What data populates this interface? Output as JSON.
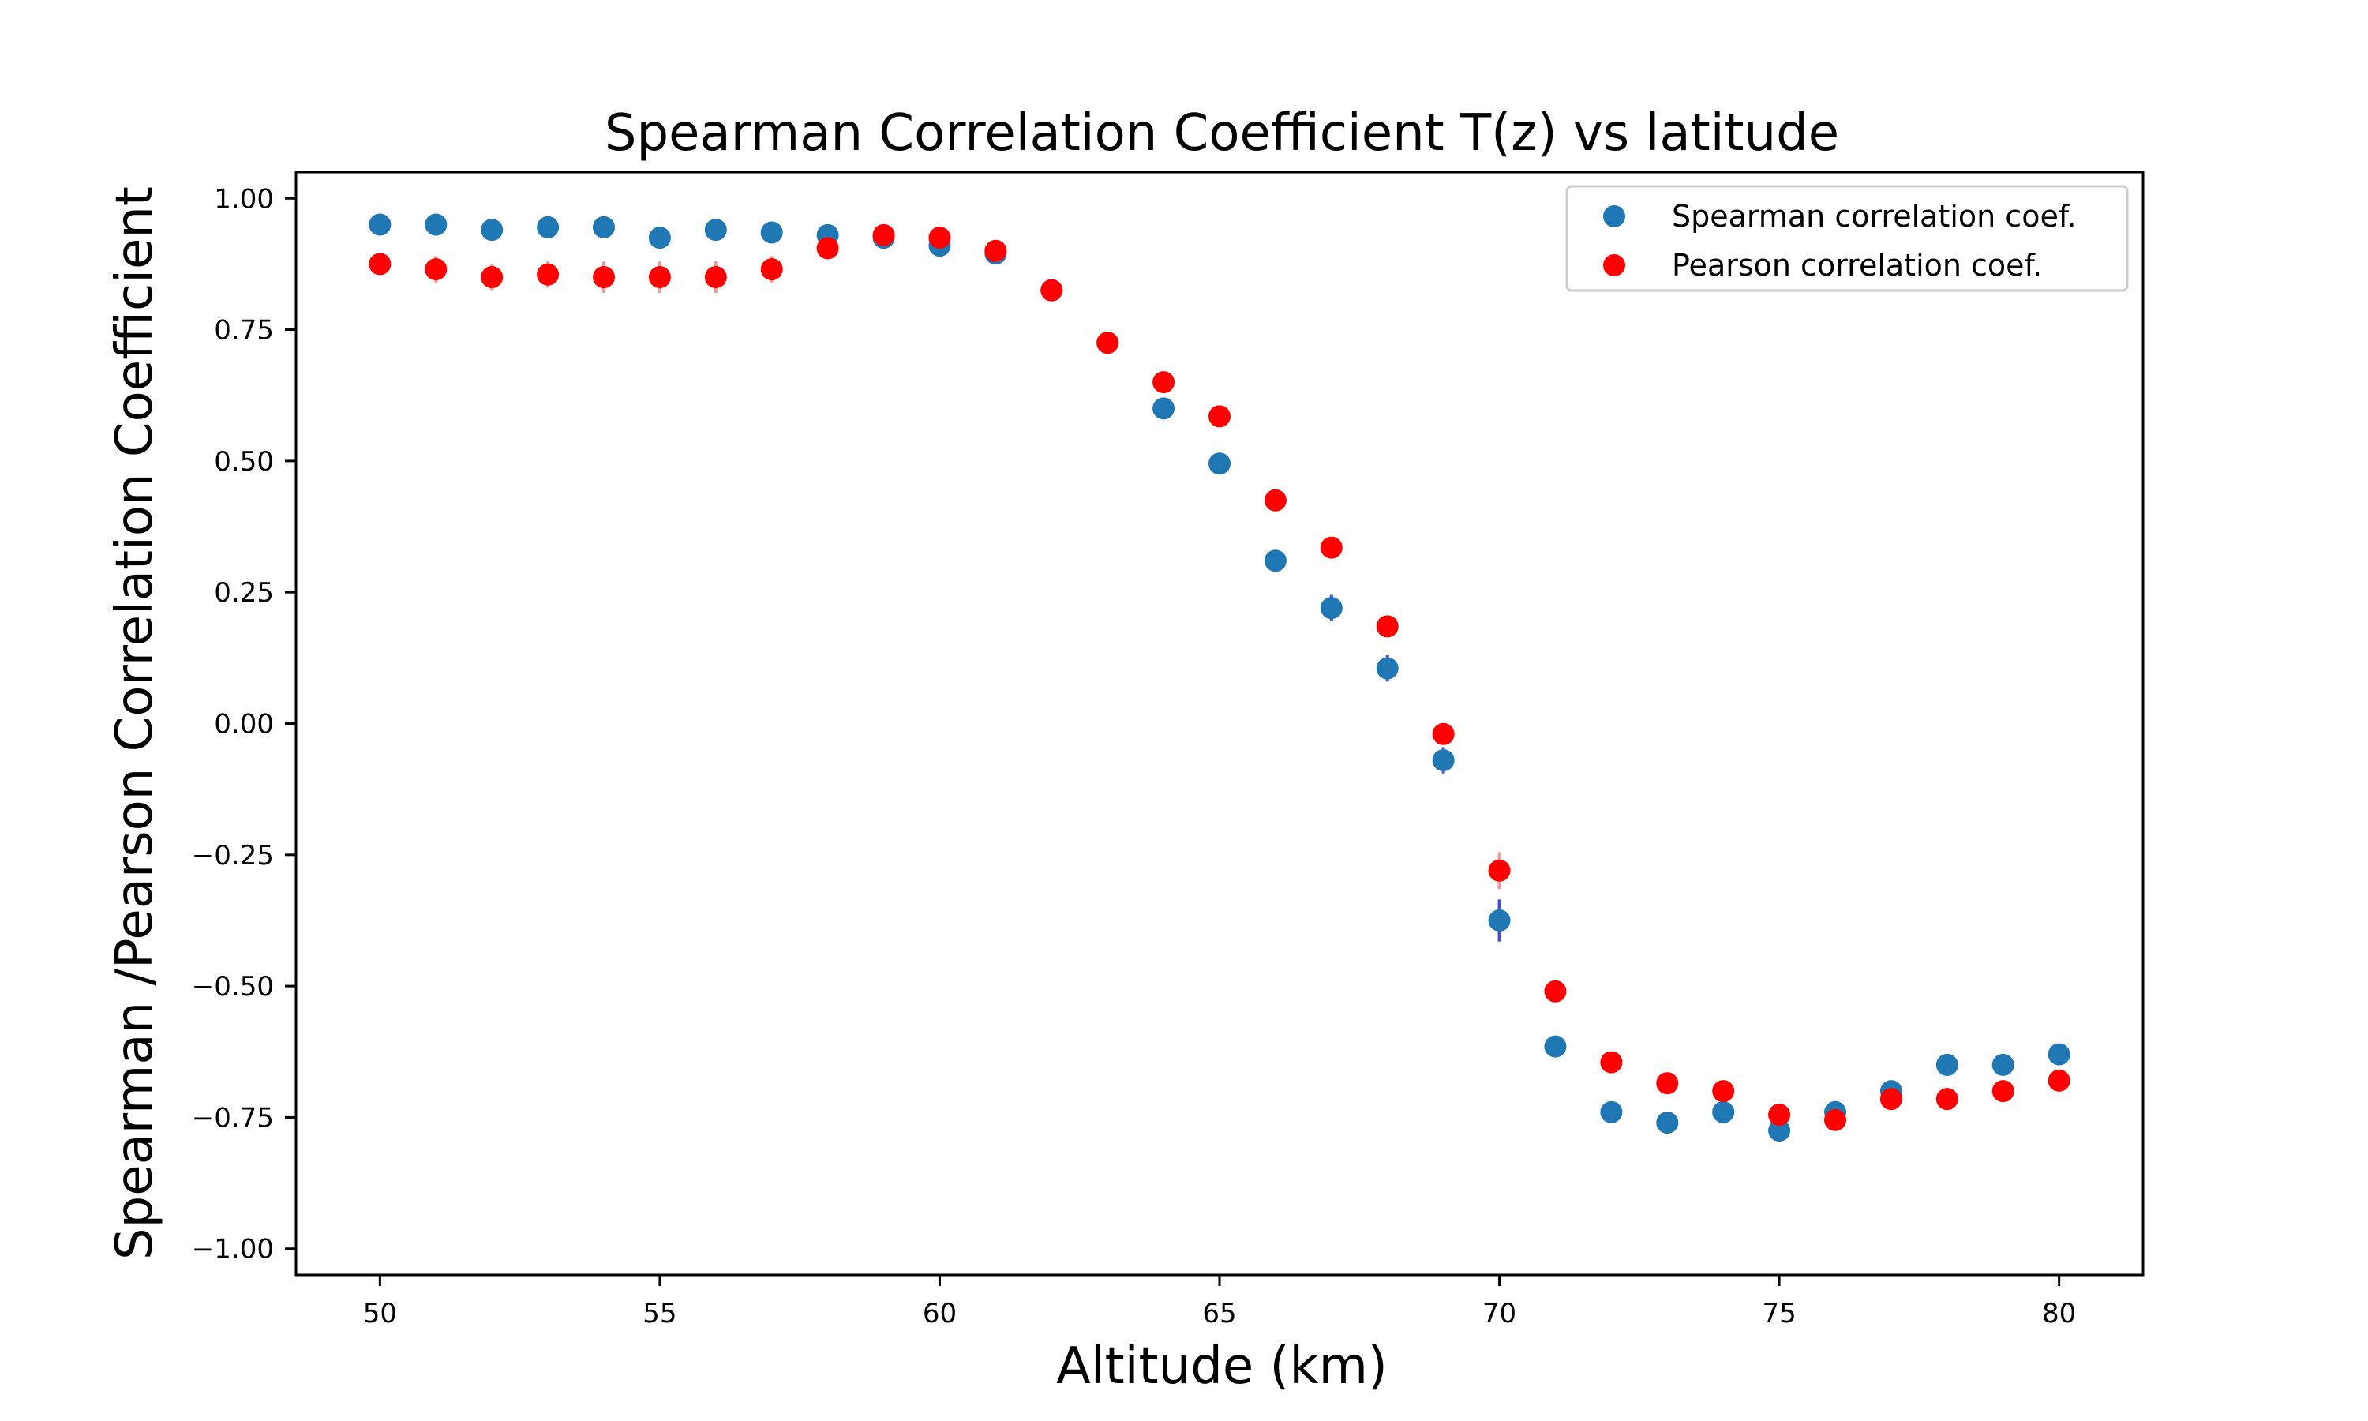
{
  "chart_data": {
    "type": "scatter",
    "title": "Spearman Correlation Coefficient T(z) vs latitude",
    "xlabel": "Altitude (km)",
    "ylabel": "Spearman /Pearson Correlation Coefficient",
    "xlim": [
      48.5,
      81.5
    ],
    "ylim": [
      -1.05,
      1.05
    ],
    "xticks": [
      50,
      55,
      60,
      65,
      70,
      75,
      80
    ],
    "yticks": [
      1.0,
      0.75,
      0.5,
      0.25,
      0.0,
      -0.25,
      -0.5,
      -0.75,
      -1.0
    ],
    "xtick_labels": [
      "50",
      "55",
      "60",
      "65",
      "70",
      "75",
      "80"
    ],
    "ytick_labels": [
      "1.00",
      "0.75",
      "0.50",
      "0.25",
      "0.00",
      "−0.25",
      "−0.50",
      "−0.75",
      "−1.00"
    ],
    "grid": false,
    "legend_position": "top-right",
    "x": [
      50,
      51,
      52,
      53,
      54,
      55,
      56,
      57,
      58,
      59,
      60,
      61,
      62,
      63,
      64,
      65,
      66,
      67,
      68,
      69,
      70,
      71,
      72,
      73,
      74,
      75,
      76,
      77,
      78,
      79,
      80
    ],
    "series": [
      {
        "name": "Spearman correlation coef.",
        "color": "#1f77b4",
        "errbar_color": "#1f1fcf",
        "values": [
          0.95,
          0.95,
          0.94,
          0.945,
          0.945,
          0.925,
          0.94,
          0.935,
          0.93,
          0.925,
          0.91,
          0.895,
          0.825,
          0.725,
          0.6,
          0.495,
          0.31,
          0.22,
          0.105,
          -0.07,
          -0.375,
          -0.615,
          -0.74,
          -0.76,
          -0.74,
          -0.775,
          -0.74,
          -0.7,
          -0.65,
          -0.65,
          -0.63
        ],
        "errors": [
          0.01,
          0.01,
          0.012,
          0.012,
          0.012,
          0.012,
          0.012,
          0.012,
          0.012,
          0.012,
          0.012,
          0.012,
          0.015,
          0.015,
          0.02,
          0.02,
          0.02,
          0.025,
          0.025,
          0.025,
          0.04,
          0.02,
          0.02,
          0.02,
          0.02,
          0.02,
          0.02,
          0.02,
          0.02,
          0.02,
          0.02
        ]
      },
      {
        "name": "Pearson correlation coef.",
        "color": "#ff0000",
        "errbar_color": "#f08080",
        "values": [
          0.875,
          0.865,
          0.85,
          0.855,
          0.85,
          0.85,
          0.85,
          0.865,
          0.905,
          0.93,
          0.925,
          0.9,
          0.825,
          0.725,
          0.65,
          0.585,
          0.425,
          0.335,
          0.185,
          -0.02,
          -0.28,
          -0.51,
          -0.645,
          -0.685,
          -0.7,
          -0.745,
          -0.755,
          -0.715,
          -0.715,
          -0.7,
          -0.68
        ],
        "errors": [
          0.02,
          0.025,
          0.025,
          0.025,
          0.03,
          0.03,
          0.03,
          0.025,
          0.02,
          0.015,
          0.015,
          0.015,
          0.015,
          0.015,
          0.02,
          0.02,
          0.02,
          0.02,
          0.02,
          0.02,
          0.035,
          0.02,
          0.02,
          0.02,
          0.02,
          0.02,
          0.02,
          0.02,
          0.02,
          0.02,
          0.02
        ]
      }
    ]
  }
}
